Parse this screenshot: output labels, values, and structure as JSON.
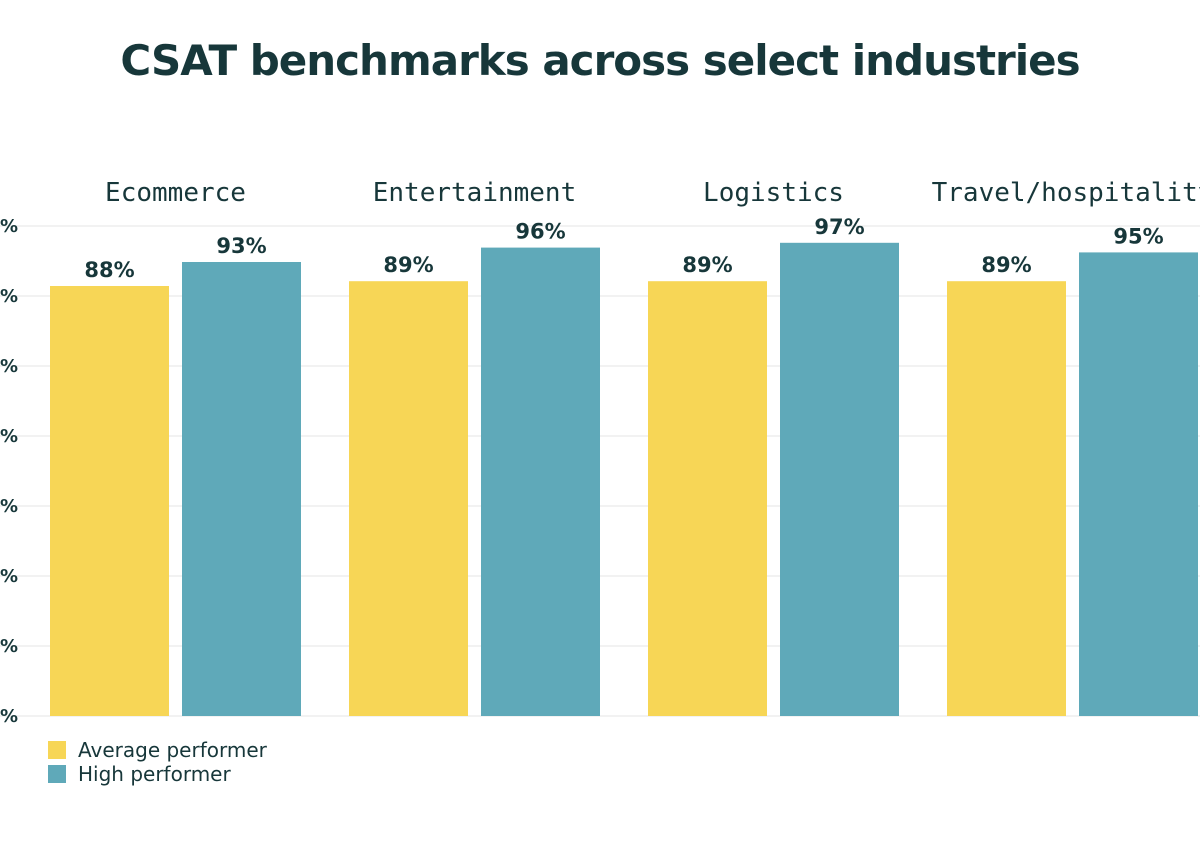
{
  "chart_data": {
    "type": "bar",
    "title": "CSAT benchmarks across select industries",
    "categories": [
      "Ecommerce",
      "Entertainment",
      "Logistics",
      "Travel/hospitality"
    ],
    "series": [
      {
        "name": "Average performer",
        "color": "#f7d656",
        "values": [
          88,
          89,
          89,
          89
        ]
      },
      {
        "name": "High performer",
        "color": "#5fa9b9",
        "values": [
          93,
          96,
          97,
          95
        ]
      }
    ],
    "data_labels": [
      [
        "88%",
        "93%"
      ],
      [
        "89%",
        "96%"
      ],
      [
        "89%",
        "97%"
      ],
      [
        "89%",
        "95%"
      ]
    ],
    "y_ticks": [
      "%",
      "%",
      "%",
      "%",
      "%",
      "%",
      "%",
      "%"
    ],
    "grid": true,
    "legend_position": "bottom-left"
  }
}
